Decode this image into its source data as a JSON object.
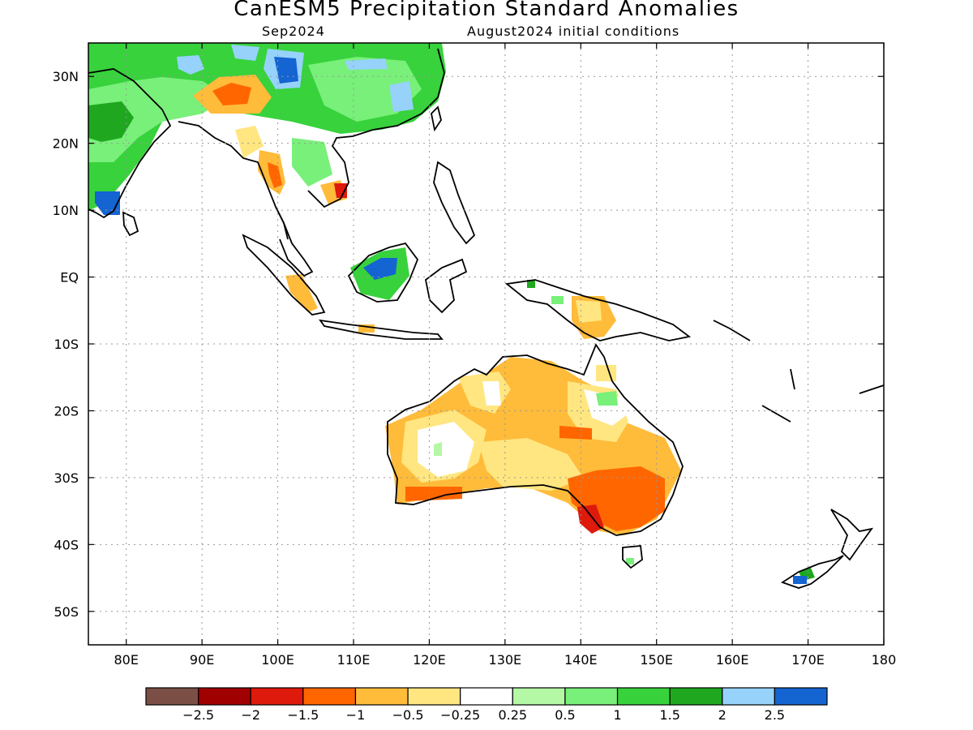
{
  "title": "CanESM5 Precipitation Standard Anomalies",
  "subtitle_left": "Sep2024",
  "subtitle_right": "August2024 initial conditions",
  "map": {
    "lon_range": [
      75,
      180
    ],
    "lat_range": [
      -55,
      35
    ],
    "lat_ticks": [
      {
        "value": 30,
        "label": "30N"
      },
      {
        "value": 20,
        "label": "20N"
      },
      {
        "value": 10,
        "label": "10N"
      },
      {
        "value": 0,
        "label": "EQ"
      },
      {
        "value": -10,
        "label": "10S"
      },
      {
        "value": -20,
        "label": "20S"
      },
      {
        "value": -30,
        "label": "30S"
      },
      {
        "value": -40,
        "label": "40S"
      },
      {
        "value": -50,
        "label": "50S"
      }
    ],
    "lon_ticks": [
      {
        "value": 80,
        "label": "80E"
      },
      {
        "value": 90,
        "label": "90E"
      },
      {
        "value": 100,
        "label": "100E"
      },
      {
        "value": 110,
        "label": "110E"
      },
      {
        "value": 120,
        "label": "120E"
      },
      {
        "value": 130,
        "label": "130E"
      },
      {
        "value": 140,
        "label": "140E"
      },
      {
        "value": 150,
        "label": "150E"
      },
      {
        "value": 160,
        "label": "160E"
      },
      {
        "value": 170,
        "label": "170E"
      },
      {
        "value": 180,
        "label": "180"
      }
    ],
    "grid": true
  },
  "colorbar": {
    "colors": [
      "#7b4f45",
      "#a00000",
      "#dd1a0c",
      "#ff6600",
      "#ffbb3a",
      "#ffe680",
      "#ffffff",
      "#b4f7a5",
      "#78f07a",
      "#37d23c",
      "#1fa81f",
      "#96d2fa",
      "#1464d2"
    ],
    "labels": [
      "−2.5",
      "−2",
      "−1.5",
      "−1",
      "−0.5",
      "−0.25",
      "0.25",
      "0.5",
      "1",
      "1.5",
      "2",
      "2.5"
    ]
  }
}
